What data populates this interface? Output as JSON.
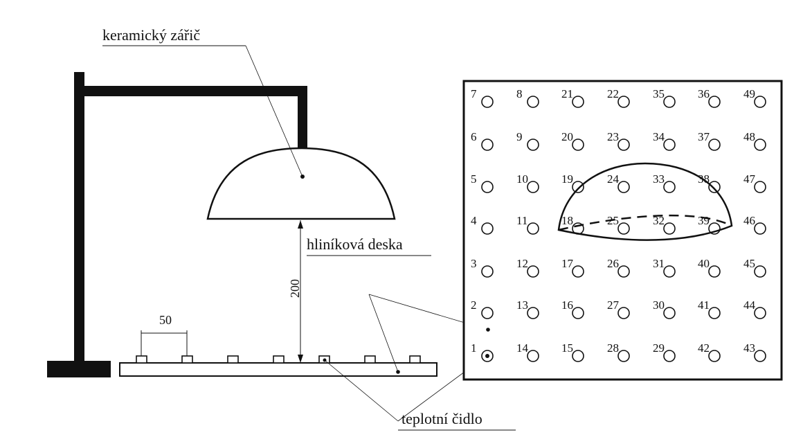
{
  "labels": {
    "emitter": "keramický zářič",
    "plate": "hliníková deska",
    "sensor": "teplotní čidlo",
    "dim_spacing": "50",
    "dim_height": "200"
  },
  "grid": {
    "rows": [
      [
        "7",
        "8",
        "21",
        "22",
        "35",
        "36",
        "49"
      ],
      [
        "6",
        "9",
        "20",
        "23",
        "34",
        "37",
        "48"
      ],
      [
        "5",
        "10",
        "19",
        "24",
        "33",
        "38",
        "47"
      ],
      [
        "4",
        "11",
        "18",
        "25",
        "32",
        "39",
        "46"
      ],
      [
        "3",
        "12",
        "17",
        "26",
        "31",
        "40",
        "45"
      ],
      [
        "2",
        "13",
        "16",
        "27",
        "30",
        "41",
        "44"
      ],
      [
        "1",
        "14",
        "15",
        "28",
        "29",
        "42",
        "43"
      ]
    ]
  }
}
